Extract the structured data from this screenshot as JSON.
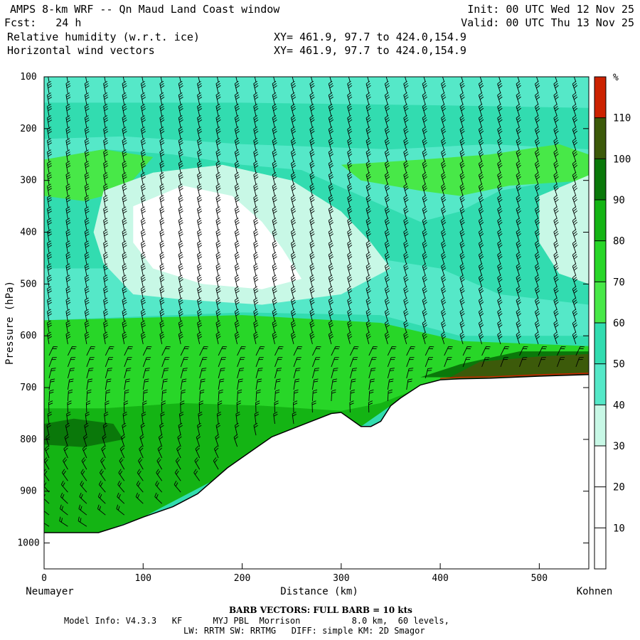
{
  "header": {
    "title": "AMPS 8-km WRF -- Qn Maud Land Coast window",
    "fcst": "Fcst:   24 h",
    "field1": "Relative humidity (w.r.t. ice)",
    "field2": "Horizontal wind vectors",
    "init": "Init: 00 UTC Wed 12 Nov 25",
    "valid": "Valid: 00 UTC Thu 13 Nov 25",
    "xy1": "XY= 461.9, 97.7 to 424.0,154.9",
    "xy2": "XY= 461.9, 97.7 to 424.0,154.9"
  },
  "chart_data": {
    "type": "heatmap",
    "xlabel": "Distance (km)",
    "ylabel": "Pressure (hPa)",
    "x_start_label": "Neumayer",
    "x_end_label": "Kohnen",
    "xlim": [
      0,
      550
    ],
    "ylim": [
      1050,
      100
    ],
    "x_ticks": [
      0,
      100,
      200,
      300,
      400,
      500
    ],
    "y_ticks": [
      100,
      200,
      300,
      400,
      500,
      600,
      700,
      800,
      900,
      1000
    ],
    "colorbar": {
      "unit": "%",
      "levels": [
        10,
        20,
        30,
        40,
        50,
        60,
        70,
        80,
        90,
        100,
        110
      ],
      "colors": [
        "#ffffff",
        "#ffffff",
        "#ffffff",
        "#c8f8e6",
        "#55e8c8",
        "#32dcb0",
        "#48e848",
        "#28d628",
        "#14b414",
        "#0a780a",
        "#3c5a0a",
        "#cc2200"
      ]
    },
    "terrain_surface_hpa": [
      [
        0,
        980
      ],
      [
        55,
        980
      ],
      [
        80,
        965
      ],
      [
        100,
        950
      ],
      [
        130,
        930
      ],
      [
        155,
        905
      ],
      [
        170,
        880
      ],
      [
        185,
        855
      ],
      [
        200,
        835
      ],
      [
        215,
        815
      ],
      [
        230,
        795
      ],
      [
        250,
        780
      ],
      [
        270,
        765
      ],
      [
        290,
        750
      ],
      [
        300,
        748
      ],
      [
        320,
        775
      ],
      [
        330,
        775
      ],
      [
        340,
        765
      ],
      [
        350,
        735
      ],
      [
        360,
        720
      ],
      [
        380,
        695
      ],
      [
        400,
        685
      ],
      [
        420,
        683
      ],
      [
        450,
        682
      ],
      [
        500,
        678
      ],
      [
        550,
        675
      ]
    ],
    "rh_regions": [
      {
        "level": 80,
        "polygon": [
          [
            0,
            740
          ],
          [
            60,
            740
          ],
          [
            140,
            730
          ],
          [
            220,
            735
          ],
          [
            300,
            745
          ],
          [
            340,
            730
          ],
          [
            380,
            700
          ],
          [
            420,
            680
          ],
          [
            550,
            660
          ],
          [
            550,
            675
          ],
          [
            420,
            683
          ],
          [
            380,
            695
          ],
          [
            350,
            735
          ],
          [
            320,
            775
          ],
          [
            290,
            750
          ],
          [
            230,
            795
          ],
          [
            170,
            880
          ],
          [
            100,
            950
          ],
          [
            55,
            980
          ],
          [
            0,
            980
          ]
        ]
      },
      {
        "level": 70,
        "polygon": [
          [
            0,
            570
          ],
          [
            200,
            560
          ],
          [
            340,
            575
          ],
          [
            420,
            610
          ],
          [
            550,
            620
          ],
          [
            550,
            665
          ],
          [
            420,
            685
          ],
          [
            380,
            700
          ],
          [
            340,
            735
          ],
          [
            300,
            750
          ],
          [
            220,
            740
          ],
          [
            0,
            745
          ]
        ]
      },
      {
        "level": 90,
        "polygon": [
          [
            0,
            770
          ],
          [
            30,
            760
          ],
          [
            70,
            770
          ],
          [
            80,
            800
          ],
          [
            40,
            815
          ],
          [
            0,
            810
          ]
        ]
      },
      {
        "level": 90,
        "polygon": [
          [
            380,
            680
          ],
          [
            420,
            655
          ],
          [
            480,
            630
          ],
          [
            550,
            630
          ],
          [
            550,
            660
          ],
          [
            420,
            680
          ]
        ]
      },
      {
        "level": 100,
        "polygon": [
          [
            410,
            680
          ],
          [
            440,
            650
          ],
          [
            500,
            640
          ],
          [
            550,
            635
          ],
          [
            550,
            675
          ],
          [
            410,
            682
          ]
        ]
      },
      {
        "level": 40,
        "polygon": [
          [
            0,
            220
          ],
          [
            80,
            215
          ],
          [
            200,
            230
          ],
          [
            350,
            240
          ],
          [
            450,
            230
          ],
          [
            550,
            240
          ],
          [
            550,
            600
          ],
          [
            420,
            600
          ],
          [
            340,
            560
          ],
          [
            200,
            555
          ],
          [
            0,
            570
          ]
        ]
      },
      {
        "level": 50,
        "polygon": [
          [
            0,
            260
          ],
          [
            60,
            240
          ],
          [
            130,
            250
          ],
          [
            200,
            270
          ],
          [
            260,
            280
          ],
          [
            320,
            330
          ],
          [
            380,
            380
          ],
          [
            420,
            360
          ],
          [
            460,
            320
          ],
          [
            520,
            300
          ],
          [
            550,
            290
          ],
          [
            550,
            540
          ],
          [
            460,
            520
          ],
          [
            400,
            470
          ],
          [
            300,
            440
          ],
          [
            180,
            450
          ],
          [
            100,
            470
          ],
          [
            0,
            470
          ]
        ]
      },
      {
        "level": 60,
        "polygon": [
          [
            0,
            260
          ],
          [
            60,
            240
          ],
          [
            110,
            255
          ],
          [
            80,
            320
          ],
          [
            40,
            340
          ],
          [
            0,
            330
          ]
        ]
      },
      {
        "level": 60,
        "polygon": [
          [
            300,
            270
          ],
          [
            380,
            260
          ],
          [
            450,
            250
          ],
          [
            520,
            230
          ],
          [
            550,
            250
          ],
          [
            550,
            300
          ],
          [
            470,
            310
          ],
          [
            420,
            330
          ],
          [
            380,
            320
          ],
          [
            320,
            300
          ]
        ]
      },
      {
        "level": 30,
        "polygon": [
          [
            60,
            320
          ],
          [
            110,
            285
          ],
          [
            180,
            270
          ],
          [
            250,
            300
          ],
          [
            300,
            360
          ],
          [
            330,
            420
          ],
          [
            350,
            470
          ],
          [
            300,
            520
          ],
          [
            220,
            540
          ],
          [
            140,
            530
          ],
          [
            90,
            520
          ],
          [
            60,
            460
          ],
          [
            50,
            400
          ]
        ]
      },
      {
        "level": 20,
        "polygon": [
          [
            90,
            350
          ],
          [
            140,
            310
          ],
          [
            190,
            330
          ],
          [
            220,
            380
          ],
          [
            240,
            430
          ],
          [
            260,
            490
          ],
          [
            220,
            510
          ],
          [
            160,
            500
          ],
          [
            110,
            470
          ],
          [
            90,
            420
          ]
        ]
      },
      {
        "level": 30,
        "polygon": [
          [
            500,
            330
          ],
          [
            550,
            290
          ],
          [
            550,
            500
          ],
          [
            520,
            480
          ],
          [
            500,
            420
          ]
        ]
      },
      {
        "level": 50,
        "polygon": [
          [
            0,
            130
          ],
          [
            100,
            120
          ],
          [
            250,
            125
          ],
          [
            400,
            130
          ],
          [
            550,
            125
          ],
          [
            550,
            200
          ],
          [
            400,
            205
          ],
          [
            250,
            200
          ],
          [
            100,
            205
          ],
          [
            0,
            205
          ]
        ]
      },
      {
        "level": 40,
        "polygon": [
          [
            0,
            100
          ],
          [
            550,
            100
          ],
          [
            550,
            160
          ],
          [
            400,
            155
          ],
          [
            200,
            150
          ],
          [
            0,
            150
          ]
        ]
      }
    ],
    "wind_barbs_note": "BARB VECTORS:  FULL BARB = 10 kts"
  },
  "footer": {
    "model_info": "Model Info: V4.3.3   KF      MYJ PBL  Morrison          8.0 km,  60 levels,",
    "physics": "LW: RRTM SW: RRTMG   DIFF: simple KM: 2D Smagor"
  }
}
